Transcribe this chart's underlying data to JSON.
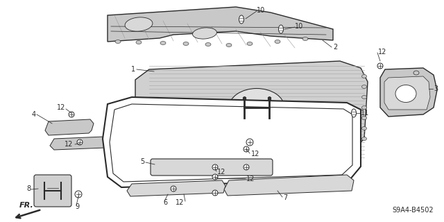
{
  "bg_color": "#ffffff",
  "lc": "#2a2a2a",
  "diagram_code": "S9A4-B4502",
  "fr_label": "FR.",
  "hatch_color": "#888888",
  "part_fc": "#c8c8c8",
  "fs": 7
}
